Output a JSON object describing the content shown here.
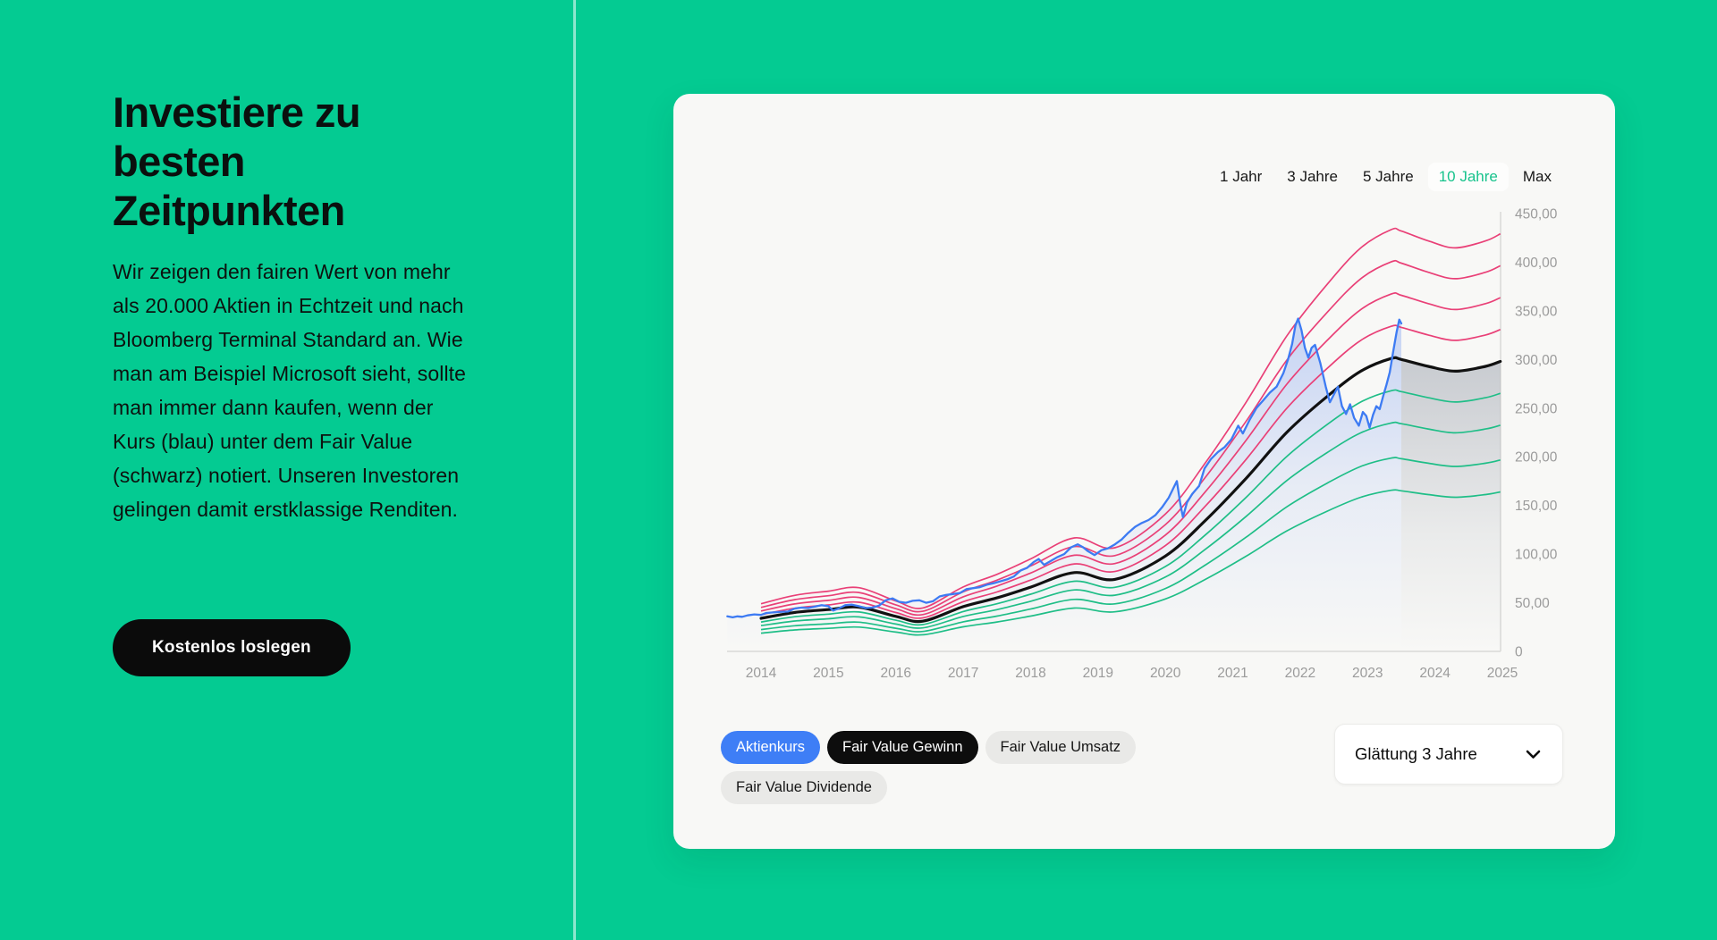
{
  "page": {
    "background": "#04cb92",
    "divider_color": "rgba(255,255,255,0.55)"
  },
  "hero": {
    "title": "Investiere zu\nbesten\nZeitpunkten",
    "description": "Wir zeigen den fairen Wert von mehr als 20.000 Aktien in Echtzeit und nach Bloomberg Terminal Standard an. Wie man am Beispiel Microsoft sieht, sollte man immer dann kaufen, wenn der Kurs (blau) unter dem Fair Value (schwarz) notiert. Unseren Investoren gelingen damit erstklassige Renditen.",
    "cta_label": "Kostenlos loslegen"
  },
  "card": {
    "range_tabs": [
      {
        "label": "1 Jahr",
        "active": false
      },
      {
        "label": "3 Jahre",
        "active": false
      },
      {
        "label": "5 Jahre",
        "active": false
      },
      {
        "label": "10 Jahre",
        "active": true
      },
      {
        "label": "Max",
        "active": false
      }
    ],
    "active_tab_color": "#17c38c",
    "legend_chips": [
      {
        "label": "Aktienkurs",
        "variant": "blue"
      },
      {
        "label": "Fair Value Gewinn",
        "variant": "black"
      },
      {
        "label": "Fair Value Umsatz",
        "variant": "gray"
      },
      {
        "label": "Fair Value Dividende",
        "variant": "gray"
      }
    ],
    "smoothing_dropdown": {
      "value": "Glättung 3 Jahre"
    }
  },
  "chart_data": {
    "type": "line",
    "title": "",
    "xlabel": "",
    "ylabel": "",
    "xlim": [
      2013.5,
      2025.0
    ],
    "ylim": [
      0,
      450
    ],
    "grid": false,
    "legend_position": "bottom",
    "x_ticks": [
      2014,
      2015,
      2016,
      2017,
      2018,
      2019,
      2020,
      2021,
      2022,
      2023,
      2024,
      2025
    ],
    "y_ticks": [
      {
        "v": 450,
        "label": "450,00"
      },
      {
        "v": 400,
        "label": "400,00"
      },
      {
        "v": 350,
        "label": "350,00"
      },
      {
        "v": 300,
        "label": "300,00"
      },
      {
        "v": 250,
        "label": "250,00"
      },
      {
        "v": 200,
        "label": "200,00"
      },
      {
        "v": 150,
        "label": "150,00"
      },
      {
        "v": 100,
        "label": "100,00"
      },
      {
        "v": 50,
        "label": "50,00"
      },
      {
        "v": 0,
        "label": "0"
      }
    ],
    "series": [
      {
        "name": "Aktienkurs",
        "type": "jagged",
        "color": "#3d7bf3",
        "width": 2.3,
        "area_color": "#5b86ef",
        "points": [
          [
            2013.5,
            36
          ],
          [
            2013.58,
            35
          ],
          [
            2013.65,
            36
          ],
          [
            2013.72,
            35.5
          ],
          [
            2013.8,
            37
          ],
          [
            2013.9,
            38
          ],
          [
            2014.0,
            37.5
          ],
          [
            2014.08,
            39.5
          ],
          [
            2014.18,
            40
          ],
          [
            2014.27,
            40.5
          ],
          [
            2014.4,
            41
          ],
          [
            2014.5,
            44
          ],
          [
            2014.6,
            45
          ],
          [
            2014.7,
            44.5
          ],
          [
            2014.8,
            46
          ],
          [
            2014.9,
            47.5
          ],
          [
            2015.0,
            46.5
          ],
          [
            2015.07,
            42
          ],
          [
            2015.15,
            44
          ],
          [
            2015.25,
            47.5
          ],
          [
            2015.35,
            48
          ],
          [
            2015.45,
            46.5
          ],
          [
            2015.55,
            44.5
          ],
          [
            2015.65,
            45
          ],
          [
            2015.75,
            47
          ],
          [
            2015.85,
            52.5
          ],
          [
            2015.95,
            54.5
          ],
          [
            2016.05,
            51
          ],
          [
            2016.15,
            50
          ],
          [
            2016.25,
            52
          ],
          [
            2016.35,
            52.5
          ],
          [
            2016.45,
            50
          ],
          [
            2016.55,
            51.5
          ],
          [
            2016.65,
            56.5
          ],
          [
            2016.75,
            58
          ],
          [
            2016.85,
            59
          ],
          [
            2016.95,
            60
          ],
          [
            2017.05,
            64
          ],
          [
            2017.15,
            65
          ],
          [
            2017.25,
            66
          ],
          [
            2017.35,
            68.5
          ],
          [
            2017.45,
            70
          ],
          [
            2017.55,
            72
          ],
          [
            2017.65,
            74
          ],
          [
            2017.75,
            77
          ],
          [
            2017.85,
            83
          ],
          [
            2017.95,
            86
          ],
          [
            2018.05,
            92
          ],
          [
            2018.12,
            95
          ],
          [
            2018.2,
            89
          ],
          [
            2018.3,
            93
          ],
          [
            2018.4,
            97
          ],
          [
            2018.5,
            100
          ],
          [
            2018.6,
            107
          ],
          [
            2018.7,
            110
          ],
          [
            2018.78,
            107
          ],
          [
            2018.85,
            103
          ],
          [
            2018.95,
            99
          ],
          [
            2019.05,
            104
          ],
          [
            2019.15,
            106
          ],
          [
            2019.25,
            110
          ],
          [
            2019.35,
            115
          ],
          [
            2019.45,
            122
          ],
          [
            2019.55,
            128
          ],
          [
            2019.65,
            132
          ],
          [
            2019.75,
            135
          ],
          [
            2019.85,
            140
          ],
          [
            2019.95,
            148
          ],
          [
            2020.05,
            158
          ],
          [
            2020.12,
            168
          ],
          [
            2020.17,
            175
          ],
          [
            2020.22,
            152
          ],
          [
            2020.26,
            138
          ],
          [
            2020.32,
            153
          ],
          [
            2020.4,
            162
          ],
          [
            2020.5,
            170
          ],
          [
            2020.58,
            188
          ],
          [
            2020.68,
            198
          ],
          [
            2020.78,
            205
          ],
          [
            2020.88,
            210
          ],
          [
            2020.98,
            218
          ],
          [
            2021.08,
            232
          ],
          [
            2021.15,
            224
          ],
          [
            2021.25,
            238
          ],
          [
            2021.35,
            250
          ],
          [
            2021.45,
            258
          ],
          [
            2021.55,
            266
          ],
          [
            2021.65,
            272
          ],
          [
            2021.75,
            286
          ],
          [
            2021.82,
            300
          ],
          [
            2021.88,
            316
          ],
          [
            2021.93,
            335
          ],
          [
            2021.97,
            342
          ],
          [
            2022.02,
            330
          ],
          [
            2022.07,
            312
          ],
          [
            2022.12,
            302
          ],
          [
            2022.17,
            312
          ],
          [
            2022.22,
            315
          ],
          [
            2022.3,
            296
          ],
          [
            2022.38,
            272
          ],
          [
            2022.44,
            256
          ],
          [
            2022.5,
            264
          ],
          [
            2022.56,
            272
          ],
          [
            2022.62,
            252
          ],
          [
            2022.68,
            244
          ],
          [
            2022.74,
            254
          ],
          [
            2022.8,
            240
          ],
          [
            2022.87,
            232
          ],
          [
            2022.93,
            246
          ],
          [
            2022.98,
            242
          ],
          [
            2023.03,
            230
          ],
          [
            2023.08,
            243
          ],
          [
            2023.13,
            252
          ],
          [
            2023.18,
            249
          ],
          [
            2023.23,
            262
          ],
          [
            2023.28,
            274
          ],
          [
            2023.33,
            287
          ],
          [
            2023.38,
            308
          ],
          [
            2023.43,
            328
          ],
          [
            2023.47,
            341
          ],
          [
            2023.5,
            337
          ]
        ]
      },
      {
        "name": "Fair Value Gewinn",
        "type": "smooth",
        "color": "#111111",
        "width": 3.2,
        "points": [
          [
            2014.0,
            34
          ],
          [
            2014.5,
            40
          ],
          [
            2015.0,
            43
          ],
          [
            2015.45,
            45.5
          ],
          [
            2016.0,
            36
          ],
          [
            2016.4,
            31
          ],
          [
            2017.0,
            46
          ],
          [
            2017.5,
            55
          ],
          [
            2018.0,
            66
          ],
          [
            2018.65,
            81
          ],
          [
            2019.25,
            74
          ],
          [
            2020.0,
            98
          ],
          [
            2020.6,
            135
          ],
          [
            2021.2,
            178
          ],
          [
            2021.8,
            225
          ],
          [
            2022.4,
            262
          ],
          [
            2022.9,
            288
          ],
          [
            2023.35,
            301
          ],
          [
            2023.5,
            300
          ],
          [
            2023.9,
            293
          ],
          [
            2024.3,
            288
          ],
          [
            2024.75,
            293
          ],
          [
            2024.97,
            298
          ]
        ]
      }
    ],
    "bands": {
      "comment": "fair value corridor lines derived from Fair Value Gewinn curve",
      "above_factors": [
        1.11,
        1.22,
        1.33,
        1.44
      ],
      "below_factors": [
        0.89,
        0.78,
        0.66,
        0.55
      ],
      "above_color": "#e94077",
      "below_color": "#1fbe87",
      "line_width": 1.7
    },
    "price_area_end_year": 2023.5,
    "forecast_area_color": "#6b7487",
    "axis_color": "#d9d9d7",
    "tick_label_color": "#9b9b9b"
  }
}
